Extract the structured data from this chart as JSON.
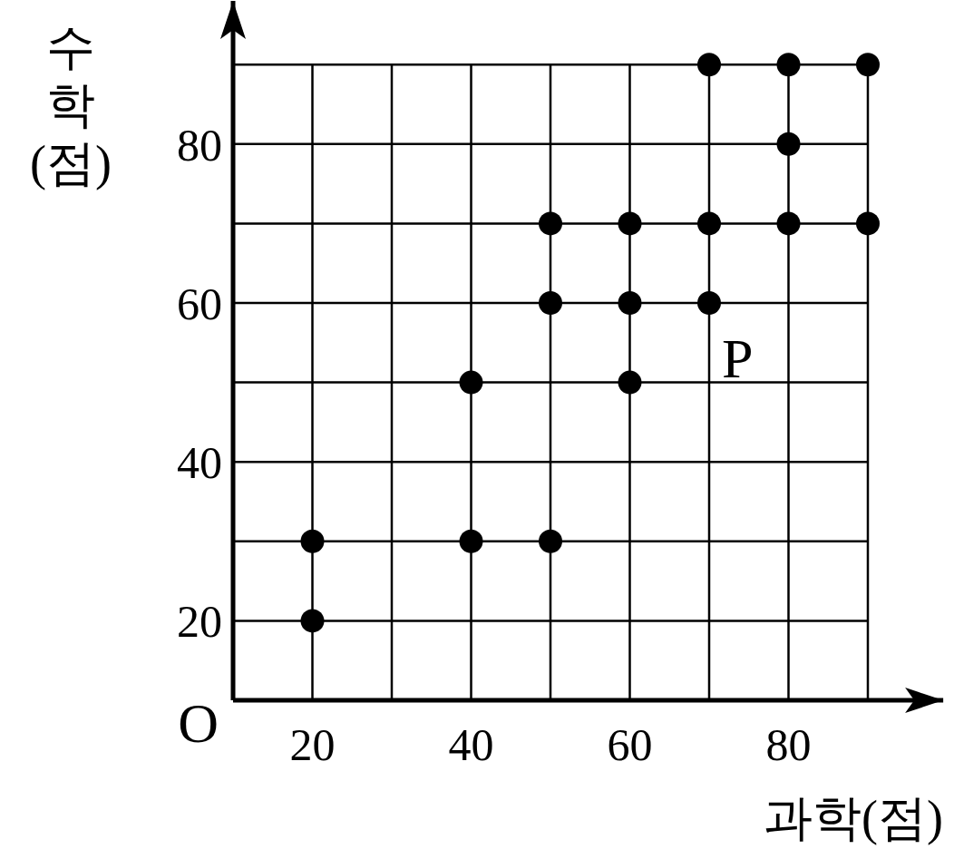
{
  "chart_data": {
    "type": "scatter",
    "xlabel": "과학(점)",
    "ylabel": "수학(점)",
    "x": [
      20,
      20,
      40,
      40,
      50,
      50,
      50,
      60,
      60,
      60,
      70,
      70,
      70,
      80,
      80,
      80,
      90,
      90
    ],
    "values": [
      30,
      20,
      30,
      50,
      30,
      60,
      70,
      70,
      60,
      50,
      90,
      70,
      60,
      90,
      80,
      70,
      90,
      70
    ],
    "color": "#000000",
    "marker": "circle",
    "grid": true,
    "xlim": [
      10,
      99.5
    ],
    "ylim": [
      10,
      98
    ],
    "xticks": [
      {
        "value": 20,
        "label": "20"
      },
      {
        "value": 30,
        "label": null
      },
      {
        "value": 40,
        "label": "40"
      },
      {
        "value": 50,
        "label": null
      },
      {
        "value": 60,
        "label": "60"
      },
      {
        "value": 70,
        "label": null
      },
      {
        "value": 80,
        "label": "80"
      },
      {
        "value": 90,
        "label": null
      }
    ],
    "yticks": [
      {
        "value": 20,
        "label": "20"
      },
      {
        "value": 30,
        "label": null
      },
      {
        "value": 40,
        "label": "40"
      },
      {
        "value": 50,
        "label": null
      },
      {
        "value": 60,
        "label": "60"
      },
      {
        "value": 70,
        "label": null
      },
      {
        "value": 80,
        "label": "80"
      },
      {
        "value": 90,
        "label": null
      }
    ],
    "annotations": [
      "O",
      {
        "text": "P",
        "x": 70,
        "y": 60
      }
    ]
  }
}
